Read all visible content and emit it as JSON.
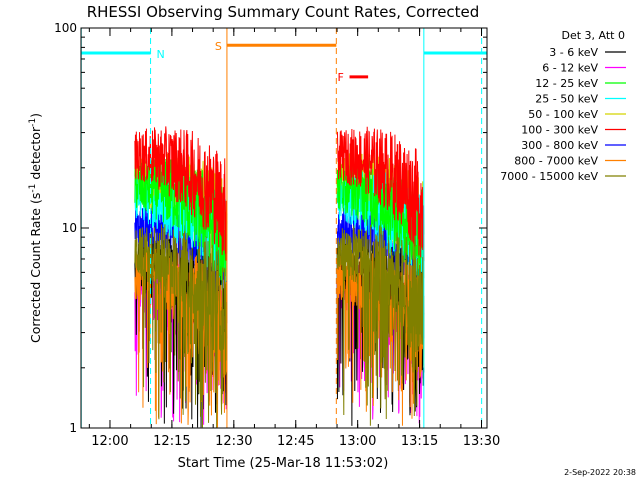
{
  "chart_data": {
    "type": "line",
    "title": "RHESSI Observing Summary Count Rates, Corrected",
    "xlabel": "Start Time (25-Mar-18 11:53:02)",
    "ylabel_parts": [
      "Corrected Count Rate (s",
      "-1",
      " detector",
      "-1",
      ")"
    ],
    "yscale": "log",
    "ylim": [
      1,
      100
    ],
    "xlim_minutes_after_start": [
      -0.05,
      98.3
    ],
    "yticks": [
      {
        "value": 1,
        "label": "1"
      },
      {
        "value": 10,
        "label": "10"
      },
      {
        "value": 100,
        "label": "100"
      }
    ],
    "xticks": [
      {
        "value": 6.97,
        "label": "12:00"
      },
      {
        "value": 21.97,
        "label": "12:15"
      },
      {
        "value": 36.97,
        "label": "12:30"
      },
      {
        "value": 51.97,
        "label": "12:45"
      },
      {
        "value": 66.97,
        "label": "13:00"
      },
      {
        "value": 81.97,
        "label": "13:15"
      },
      {
        "value": 96.97,
        "label": "13:30"
      }
    ],
    "legend_title": "Det 3, Att 0",
    "legend_position": "right",
    "series": [
      {
        "name": "3 - 6 keV",
        "color": "#000000",
        "level": 5.5
      },
      {
        "name": "6 - 12 keV",
        "color": "#ff00ff",
        "level": 4.2
      },
      {
        "name": "12 - 25 keV",
        "color": "#00ff00",
        "level": 14.0
      },
      {
        "name": "25 - 50 keV",
        "color": "#00ffff",
        "level": 12.5
      },
      {
        "name": "50 - 100 keV",
        "color": "#d4d400",
        "level": 15.0
      },
      {
        "name": "100 - 300 keV",
        "color": "#ff0000",
        "level": 20.0
      },
      {
        "name": "300 - 800 keV",
        "color": "#0000ff",
        "level": 8.5
      },
      {
        "name": "800 - 7000 keV",
        "color": "#ff8000",
        "level": 5.0
      },
      {
        "name": "7000 - 15000 keV",
        "color": "#808000",
        "level": 6.5
      }
    ],
    "data_segments_minutes": [
      [
        13.0,
        35.3
      ],
      [
        62.0,
        83.0
      ]
    ],
    "saa_bars": [
      {
        "start": -0.05,
        "end": 16.8,
        "value": 75,
        "color": "#00ffff",
        "label": "N"
      },
      {
        "start": 83.0,
        "end": 98.3,
        "value": 75,
        "color": "#00ffff",
        "label": ""
      },
      {
        "start": 35.3,
        "end": 61.8,
        "value": 82,
        "color": "#ff8000",
        "label": "S"
      }
    ],
    "flare_marker": {
      "start": 65.0,
      "end": 69.5,
      "value": 57,
      "color": "#ff0000",
      "label": "F"
    },
    "vlines": [
      {
        "x": 0.0,
        "color": "#00ffff",
        "style": "solid"
      },
      {
        "x": 16.8,
        "color": "#00ffff",
        "style": "dashed"
      },
      {
        "x": 35.3,
        "color": "#ff8000",
        "style": "solid"
      },
      {
        "x": 61.8,
        "color": "#ff8000",
        "style": "dashed"
      },
      {
        "x": 83.0,
        "color": "#00ffff",
        "style": "solid"
      },
      {
        "x": 97.0,
        "color": "#00ffff",
        "style": "dashed"
      }
    ]
  },
  "footer": {
    "timestamp": "2-Sep-2022 20:38"
  }
}
